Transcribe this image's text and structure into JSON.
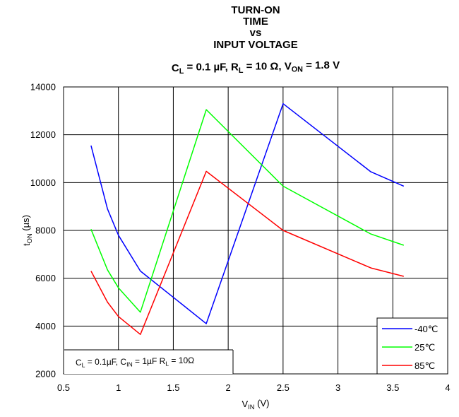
{
  "chart_data": {
    "type": "line",
    "title_lines": [
      "TURN-ON",
      "TIME",
      "vs",
      "INPUT VOLTAGE"
    ],
    "subtitle": {
      "parts": [
        {
          "t": "C",
          "sub": false
        },
        {
          "t": "L",
          "sub": true
        },
        {
          "t": " = 0.1 µF, R",
          "sub": false
        },
        {
          "t": "L",
          "sub": true
        },
        {
          "t": " = 10 Ω, V",
          "sub": false
        },
        {
          "t": "ON",
          "sub": true
        },
        {
          "t": " = 1.8 V",
          "sub": false
        }
      ]
    },
    "xlabel": {
      "parts": [
        {
          "t": "V",
          "sub": false
        },
        {
          "t": "IN",
          "sub": true
        },
        {
          "t": " (V)",
          "sub": false
        }
      ]
    },
    "ylabel": {
      "parts": [
        {
          "t": "t",
          "sub": false
        },
        {
          "t": "ON",
          "sub": true
        },
        {
          "t": " (µs)",
          "sub": false
        }
      ]
    },
    "xlim": [
      0.5,
      4
    ],
    "ylim": [
      2000,
      14000
    ],
    "xticks": [
      0.5,
      1,
      1.5,
      2,
      2.5,
      3,
      3.5,
      4
    ],
    "xtick_labels": [
      "0.5",
      "1",
      "1.5",
      "2",
      "2.5",
      "3",
      "3.5",
      "4"
    ],
    "yticks": [
      2000,
      4000,
      6000,
      8000,
      10000,
      12000,
      14000
    ],
    "ytick_labels": [
      "2000",
      "4000",
      "6000",
      "8000",
      "10000",
      "12000",
      "14000"
    ],
    "grid": true,
    "legend_position": "bottom-right",
    "note": {
      "parts": [
        {
          "t": "C",
          "sub": false
        },
        {
          "t": "L",
          "sub": true
        },
        {
          "t": " = 0.1µF, C",
          "sub": false
        },
        {
          "t": "IN",
          "sub": true
        },
        {
          "t": " = 1µF R",
          "sub": false
        },
        {
          "t": "L",
          "sub": true
        },
        {
          "t": " = 10Ω",
          "sub": false
        }
      ]
    },
    "series": [
      {
        "name": "-40℃",
        "color": "#0000ff",
        "x": [
          0.75,
          0.9,
          1.0,
          1.2,
          1.8,
          2.5,
          3.3,
          3.6
        ],
        "y": [
          11550,
          8900,
          7800,
          6300,
          4100,
          13300,
          10450,
          9850
        ]
      },
      {
        "name": "25℃",
        "color": "#00ff00",
        "x": [
          0.75,
          0.9,
          1.0,
          1.2,
          1.8,
          2.5,
          3.3,
          3.6
        ],
        "y": [
          8050,
          6350,
          5600,
          4580,
          13050,
          9850,
          7850,
          7380
        ]
      },
      {
        "name": "85℃",
        "color": "#ff0000",
        "x": [
          0.75,
          0.9,
          1.0,
          1.2,
          1.8,
          2.5,
          3.3,
          3.6
        ],
        "y": [
          6300,
          5000,
          4400,
          3650,
          10470,
          8000,
          6430,
          6080
        ]
      }
    ]
  }
}
